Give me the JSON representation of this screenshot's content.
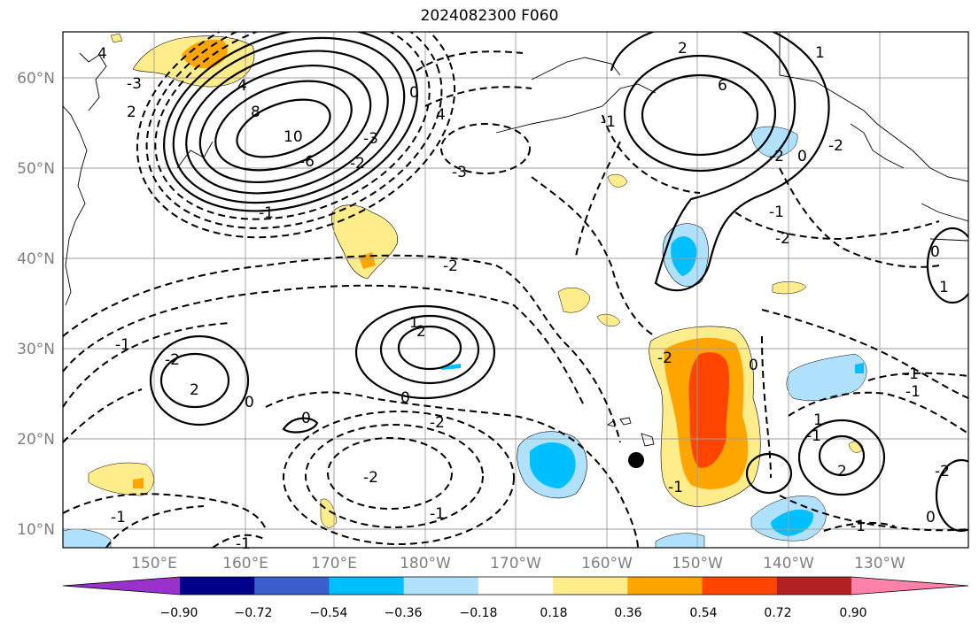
{
  "title": "2024082300 F060",
  "lat_labels": [
    "10°N",
    "20°N",
    "30°N",
    "40°N",
    "50°N",
    "60°N"
  ],
  "lon_labels": [
    "150°E",
    "160°E",
    "170°E",
    "180°W",
    "170°W",
    "160°W",
    "150°W",
    "140°W",
    "130°W"
  ],
  "colorbar": {
    "ticks": [
      "−0.90",
      "−0.72",
      "−0.54",
      "−0.36",
      "−0.18",
      "0.18",
      "0.36",
      "0.54",
      "0.72",
      "0.90"
    ],
    "colors": [
      "#9932cc",
      "#00008b",
      "#3a5fcd",
      "#00bfff",
      "#b0e2ff",
      "#ffffff",
      "#ffec8b",
      "#ffa500",
      "#ff4500",
      "#b22222",
      "#ff82ab"
    ]
  },
  "contour_labels": [
    "4",
    "-3",
    "2",
    "8",
    "10",
    "-6",
    "4",
    "-3",
    "-2",
    "0",
    "-1",
    "-1",
    "2",
    "-2",
    "0",
    "-1",
    "1",
    "-2",
    "2",
    "-2",
    "0",
    "0",
    "-1",
    "-2",
    "-1",
    "4",
    "6",
    "-3",
    "2",
    "0",
    "-2",
    "-1",
    "-1",
    "-2",
    "1",
    "0",
    "-2",
    "-2",
    "0",
    "-1",
    "2",
    "-1",
    "-1",
    "-1",
    "-2",
    "1",
    "1",
    "0",
    "-1"
  ]
}
